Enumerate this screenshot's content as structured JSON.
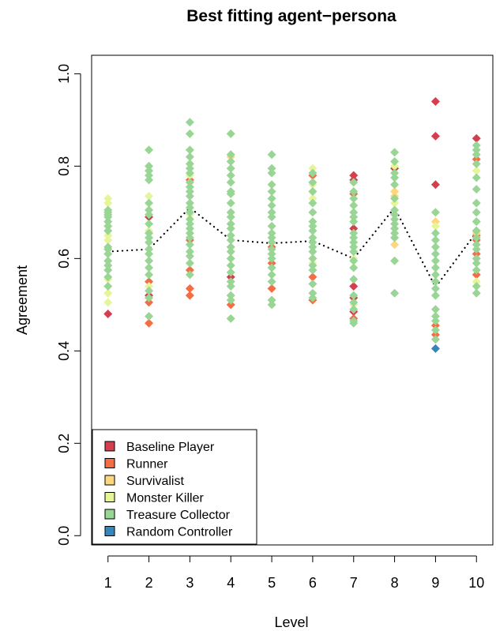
{
  "chart_data": {
    "type": "scatter",
    "title": "Best fitting agent−persona",
    "xlabel": "Level",
    "ylabel": "Agreement",
    "xlim": [
      0.6,
      10.4
    ],
    "ylim": [
      -0.02,
      1.04
    ],
    "x_ticks": [
      "1",
      "2",
      "3",
      "4",
      "5",
      "6",
      "7",
      "8",
      "9",
      "10"
    ],
    "y_ticks": [
      "0.0",
      "0.2",
      "0.4",
      "0.6",
      "0.8",
      "1.0"
    ],
    "legend_position": "bottom-left",
    "grid": false,
    "series": [
      {
        "name": "Baseline Player",
        "color": "#D53E4F",
        "points": [
          [
            1,
            0.48
          ],
          [
            2,
            0.69
          ],
          [
            2,
            0.52
          ],
          [
            4,
            0.56
          ],
          [
            7,
            0.78
          ],
          [
            7,
            0.77
          ],
          [
            7,
            0.665
          ],
          [
            7,
            0.54
          ],
          [
            7,
            0.515
          ],
          [
            7,
            0.485
          ],
          [
            8,
            0.795
          ],
          [
            9,
            0.94
          ],
          [
            9,
            0.865
          ],
          [
            9,
            0.76
          ],
          [
            10,
            0.86
          ]
        ]
      },
      {
        "name": "Runner",
        "color": "#F46D43",
        "points": [
          [
            2,
            0.55
          ],
          [
            2,
            0.505
          ],
          [
            2,
            0.46
          ],
          [
            3,
            0.77
          ],
          [
            3,
            0.64
          ],
          [
            3,
            0.575
          ],
          [
            3,
            0.535
          ],
          [
            3,
            0.52
          ],
          [
            4,
            0.5
          ],
          [
            5,
            0.625
          ],
          [
            5,
            0.59
          ],
          [
            5,
            0.535
          ],
          [
            6,
            0.78
          ],
          [
            6,
            0.56
          ],
          [
            6,
            0.51
          ],
          [
            7,
            0.74
          ],
          [
            7,
            0.47
          ],
          [
            9,
            0.455
          ],
          [
            9,
            0.435
          ],
          [
            10,
            0.815
          ],
          [
            10,
            0.66
          ],
          [
            10,
            0.65
          ],
          [
            10,
            0.64
          ],
          [
            10,
            0.61
          ],
          [
            10,
            0.565
          ]
        ]
      },
      {
        "name": "Survivalist",
        "color": "#FDD67D",
        "points": [
          [
            4,
            0.82
          ],
          [
            8,
            0.745
          ],
          [
            8,
            0.735
          ],
          [
            8,
            0.63
          ],
          [
            9,
            0.68
          ],
          [
            10,
            0.655
          ]
        ]
      },
      {
        "name": "Monster Killer",
        "color": "#E6F598",
        "points": [
          [
            1,
            0.73
          ],
          [
            1,
            0.72
          ],
          [
            1,
            0.65
          ],
          [
            1,
            0.64
          ],
          [
            1,
            0.555
          ],
          [
            1,
            0.525
          ],
          [
            1,
            0.505
          ],
          [
            2,
            0.735
          ],
          [
            2,
            0.66
          ],
          [
            2,
            0.54
          ],
          [
            3,
            0.78
          ],
          [
            3,
            0.695
          ],
          [
            6,
            0.795
          ],
          [
            6,
            0.76
          ],
          [
            6,
            0.745
          ],
          [
            6,
            0.73
          ],
          [
            6,
            0.59
          ],
          [
            7,
            0.6
          ],
          [
            7,
            0.5
          ],
          [
            8,
            0.8
          ],
          [
            8,
            0.72
          ],
          [
            9,
            0.67
          ],
          [
            10,
            0.79
          ],
          [
            10,
            0.55
          ]
        ]
      },
      {
        "name": "Treasure Collector",
        "color": "#99D594",
        "points": [
          [
            1,
            0.705
          ],
          [
            1,
            0.7
          ],
          [
            1,
            0.695
          ],
          [
            1,
            0.69
          ],
          [
            1,
            0.68
          ],
          [
            1,
            0.67
          ],
          [
            1,
            0.66
          ],
          [
            1,
            0.625
          ],
          [
            1,
            0.62
          ],
          [
            1,
            0.61
          ],
          [
            1,
            0.595
          ],
          [
            1,
            0.585
          ],
          [
            1,
            0.575
          ],
          [
            1,
            0.56
          ],
          [
            1,
            0.54
          ],
          [
            2,
            0.835
          ],
          [
            2,
            0.8
          ],
          [
            2,
            0.79
          ],
          [
            2,
            0.78
          ],
          [
            2,
            0.77
          ],
          [
            2,
            0.72
          ],
          [
            2,
            0.705
          ],
          [
            2,
            0.695
          ],
          [
            2,
            0.675
          ],
          [
            2,
            0.655
          ],
          [
            2,
            0.645
          ],
          [
            2,
            0.635
          ],
          [
            2,
            0.62
          ],
          [
            2,
            0.61
          ],
          [
            2,
            0.595
          ],
          [
            2,
            0.58
          ],
          [
            2,
            0.565
          ],
          [
            2,
            0.53
          ],
          [
            2,
            0.515
          ],
          [
            2,
            0.475
          ],
          [
            3,
            0.895
          ],
          [
            3,
            0.87
          ],
          [
            3,
            0.835
          ],
          [
            3,
            0.82
          ],
          [
            3,
            0.805
          ],
          [
            3,
            0.795
          ],
          [
            3,
            0.785
          ],
          [
            3,
            0.765
          ],
          [
            3,
            0.755
          ],
          [
            3,
            0.745
          ],
          [
            3,
            0.735
          ],
          [
            3,
            0.72
          ],
          [
            3,
            0.71
          ],
          [
            3,
            0.7
          ],
          [
            3,
            0.685
          ],
          [
            3,
            0.675
          ],
          [
            3,
            0.665
          ],
          [
            3,
            0.655
          ],
          [
            3,
            0.645
          ],
          [
            3,
            0.63
          ],
          [
            3,
            0.615
          ],
          [
            3,
            0.605
          ],
          [
            3,
            0.59
          ],
          [
            3,
            0.565
          ],
          [
            4,
            0.87
          ],
          [
            4,
            0.825
          ],
          [
            4,
            0.81
          ],
          [
            4,
            0.795
          ],
          [
            4,
            0.78
          ],
          [
            4,
            0.765
          ],
          [
            4,
            0.745
          ],
          [
            4,
            0.74
          ],
          [
            4,
            0.72
          ],
          [
            4,
            0.7
          ],
          [
            4,
            0.69
          ],
          [
            4,
            0.675
          ],
          [
            4,
            0.665
          ],
          [
            4,
            0.65
          ],
          [
            4,
            0.64
          ],
          [
            4,
            0.625
          ],
          [
            4,
            0.615
          ],
          [
            4,
            0.6
          ],
          [
            4,
            0.585
          ],
          [
            4,
            0.57
          ],
          [
            4,
            0.55
          ],
          [
            4,
            0.54
          ],
          [
            4,
            0.52
          ],
          [
            4,
            0.51
          ],
          [
            4,
            0.47
          ],
          [
            5,
            0.825
          ],
          [
            5,
            0.795
          ],
          [
            5,
            0.785
          ],
          [
            5,
            0.76
          ],
          [
            5,
            0.745
          ],
          [
            5,
            0.73
          ],
          [
            5,
            0.715
          ],
          [
            5,
            0.7
          ],
          [
            5,
            0.69
          ],
          [
            5,
            0.67
          ],
          [
            5,
            0.655
          ],
          [
            5,
            0.645
          ],
          [
            5,
            0.635
          ],
          [
            5,
            0.62
          ],
          [
            5,
            0.61
          ],
          [
            5,
            0.6
          ],
          [
            5,
            0.58
          ],
          [
            5,
            0.565
          ],
          [
            5,
            0.55
          ],
          [
            5,
            0.51
          ],
          [
            5,
            0.5
          ],
          [
            6,
            0.785
          ],
          [
            6,
            0.765
          ],
          [
            6,
            0.745
          ],
          [
            6,
            0.72
          ],
          [
            6,
            0.7
          ],
          [
            6,
            0.68
          ],
          [
            6,
            0.67
          ],
          [
            6,
            0.66
          ],
          [
            6,
            0.645
          ],
          [
            6,
            0.635
          ],
          [
            6,
            0.625
          ],
          [
            6,
            0.615
          ],
          [
            6,
            0.6
          ],
          [
            6,
            0.585
          ],
          [
            6,
            0.575
          ],
          [
            6,
            0.545
          ],
          [
            6,
            0.525
          ],
          [
            6,
            0.515
          ],
          [
            7,
            0.765
          ],
          [
            7,
            0.745
          ],
          [
            7,
            0.73
          ],
          [
            7,
            0.715
          ],
          [
            7,
            0.7
          ],
          [
            7,
            0.69
          ],
          [
            7,
            0.68
          ],
          [
            7,
            0.655
          ],
          [
            7,
            0.645
          ],
          [
            7,
            0.635
          ],
          [
            7,
            0.625
          ],
          [
            7,
            0.615
          ],
          [
            7,
            0.595
          ],
          [
            7,
            0.58
          ],
          [
            7,
            0.555
          ],
          [
            7,
            0.52
          ],
          [
            7,
            0.505
          ],
          [
            7,
            0.49
          ],
          [
            7,
            0.465
          ],
          [
            7,
            0.46
          ],
          [
            8,
            0.83
          ],
          [
            8,
            0.81
          ],
          [
            8,
            0.785
          ],
          [
            8,
            0.775
          ],
          [
            8,
            0.76
          ],
          [
            8,
            0.73
          ],
          [
            8,
            0.705
          ],
          [
            8,
            0.695
          ],
          [
            8,
            0.685
          ],
          [
            8,
            0.675
          ],
          [
            8,
            0.665
          ],
          [
            8,
            0.655
          ],
          [
            8,
            0.645
          ],
          [
            8,
            0.595
          ],
          [
            8,
            0.525
          ],
          [
            9,
            0.7
          ],
          [
            9,
            0.655
          ],
          [
            9,
            0.64
          ],
          [
            9,
            0.625
          ],
          [
            9,
            0.61
          ],
          [
            9,
            0.595
          ],
          [
            9,
            0.58
          ],
          [
            9,
            0.565
          ],
          [
            9,
            0.55
          ],
          [
            9,
            0.535
          ],
          [
            9,
            0.52
          ],
          [
            9,
            0.49
          ],
          [
            9,
            0.475
          ],
          [
            9,
            0.465
          ],
          [
            9,
            0.445
          ],
          [
            9,
            0.425
          ],
          [
            10,
            0.845
          ],
          [
            10,
            0.835
          ],
          [
            10,
            0.825
          ],
          [
            10,
            0.805
          ],
          [
            10,
            0.775
          ],
          [
            10,
            0.75
          ],
          [
            10,
            0.72
          ],
          [
            10,
            0.7
          ],
          [
            10,
            0.68
          ],
          [
            10,
            0.66
          ],
          [
            10,
            0.645
          ],
          [
            10,
            0.63
          ],
          [
            10,
            0.62
          ],
          [
            10,
            0.6
          ],
          [
            10,
            0.59
          ],
          [
            10,
            0.575
          ],
          [
            10,
            0.54
          ],
          [
            10,
            0.525
          ]
        ]
      },
      {
        "name": "Random Controller",
        "color": "#3288BD",
        "points": [
          [
            9,
            0.405
          ]
        ]
      }
    ],
    "mean_line": {
      "style": "dotted",
      "values": [
        0.615,
        0.62,
        0.71,
        0.64,
        0.633,
        0.638,
        0.6,
        0.71,
        0.538,
        0.657
      ]
    }
  }
}
